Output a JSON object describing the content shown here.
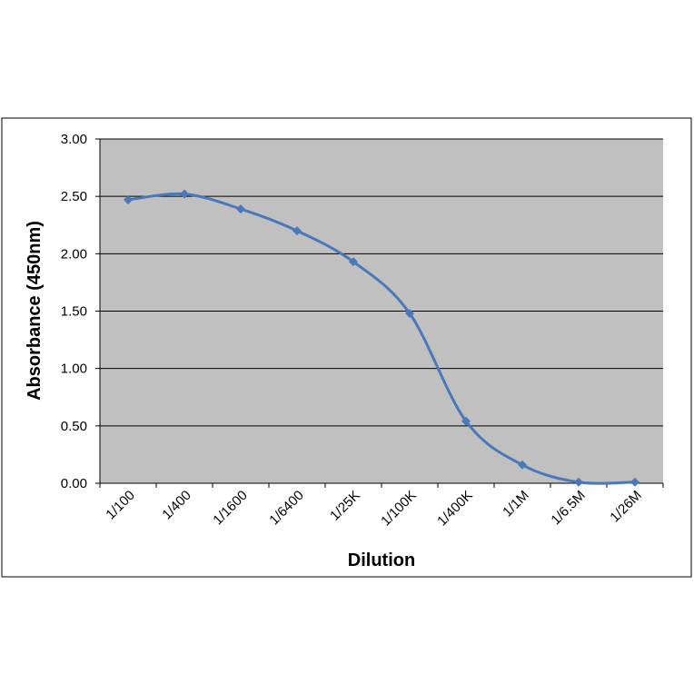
{
  "chart_data": {
    "type": "line",
    "x_label": "Dilution",
    "y_label": "Absorbance (450nm)",
    "categories": [
      "1/100",
      "1/400",
      "1/1600",
      "1/6400",
      "1/25K",
      "1/100K",
      "1/400K",
      "1/1M",
      "1/6.5M",
      "1/26M"
    ],
    "values": [
      2.47,
      2.52,
      2.39,
      2.2,
      1.93,
      1.48,
      0.54,
      0.16,
      0.01,
      0.01
    ],
    "color": "#4a78b8",
    "ylim": [
      0,
      3
    ],
    "yticks": [
      {
        "value": 0,
        "label": "0.00"
      },
      {
        "value": 0.5,
        "label": "0.50"
      },
      {
        "value": 1,
        "label": "1.00"
      },
      {
        "value": 1.5,
        "label": "1.50"
      },
      {
        "value": 2,
        "label": "2.00"
      },
      {
        "value": 2.5,
        "label": "2.50"
      },
      {
        "value": 3,
        "label": "3.00"
      }
    ],
    "grid": true
  }
}
